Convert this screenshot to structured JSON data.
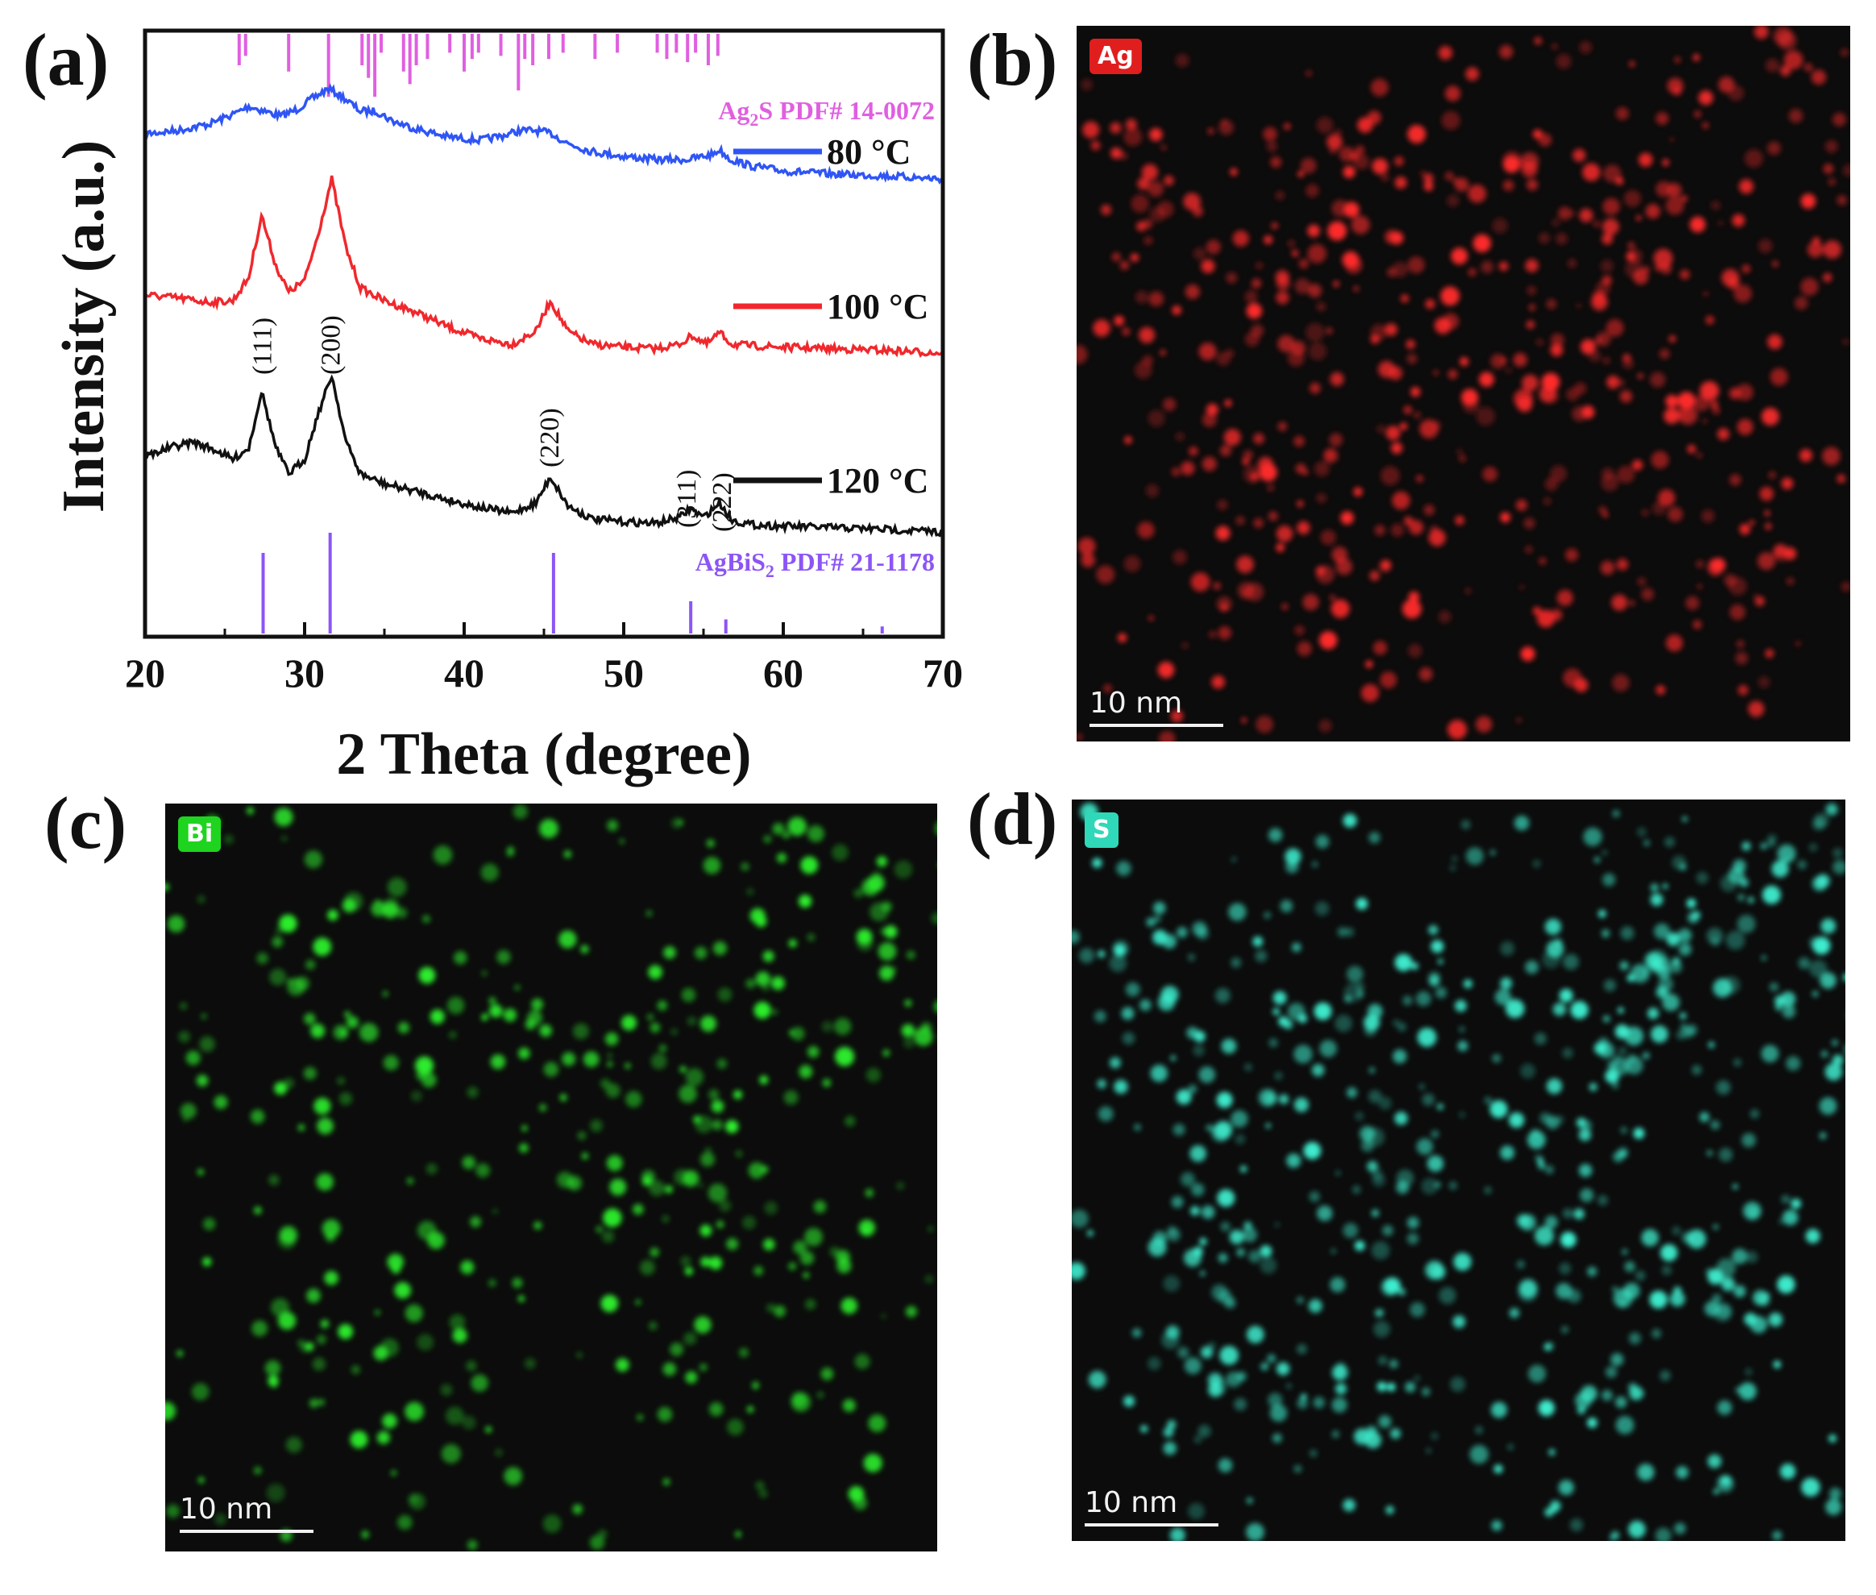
{
  "panels": {
    "a": "(a)",
    "b": "(b)",
    "c": "(c)",
    "d": "(d)"
  },
  "chart_data": {
    "type": "line",
    "xlabel": "2 Theta (degree)",
    "ylabel": "Intensity (a.u.)",
    "xlim": [
      20,
      70
    ],
    "xticks": [
      20,
      30,
      40,
      50,
      60,
      70
    ],
    "grid": false,
    "legend_placement": "right, beside each curve",
    "series": [
      {
        "name": "80 °C",
        "color": "#2f55f5",
        "x": [
          20,
          22,
          24,
          25.5,
          26.5,
          27.5,
          28.5,
          29.5,
          30.5,
          31.5,
          32.5,
          33.5,
          34.5,
          35.5,
          37,
          39,
          41,
          42.5,
          43.5,
          44.5,
          45.5,
          46.5,
          48,
          50,
          52,
          54,
          55.5,
          56,
          56.7,
          58,
          60,
          63,
          66,
          70
        ],
        "y": [
          0.28,
          0.3,
          0.34,
          0.4,
          0.45,
          0.42,
          0.39,
          0.43,
          0.5,
          0.56,
          0.5,
          0.42,
          0.42,
          0.36,
          0.31,
          0.26,
          0.24,
          0.27,
          0.3,
          0.3,
          0.28,
          0.22,
          0.17,
          0.14,
          0.12,
          0.12,
          0.15,
          0.18,
          0.12,
          0.08,
          0.05,
          0.03,
          0.02,
          0.0
        ]
      },
      {
        "name": "100 °C",
        "color": "#f0282d",
        "x": [
          20,
          22,
          24,
          25.5,
          26.5,
          27.3,
          28.2,
          29,
          30,
          30.8,
          31.7,
          32.6,
          33.5,
          35,
          37,
          39,
          41,
          43,
          44.5,
          45.4,
          46.5,
          48,
          50,
          52,
          53.5,
          54.3,
          55.2,
          56,
          56.8,
          58,
          60,
          63,
          66,
          70
        ],
        "y": [
          0.4,
          0.38,
          0.35,
          0.36,
          0.52,
          0.95,
          0.6,
          0.42,
          0.5,
          0.8,
          1.2,
          0.72,
          0.45,
          0.36,
          0.28,
          0.18,
          0.1,
          0.06,
          0.15,
          0.36,
          0.15,
          0.06,
          0.04,
          0.03,
          0.06,
          0.12,
          0.06,
          0.14,
          0.06,
          0.05,
          0.04,
          0.03,
          0.02,
          0.0
        ]
      },
      {
        "name": "120 °C",
        "color": "#111111",
        "x": [
          20,
          21.5,
          23,
          24.5,
          25.5,
          26.5,
          27.3,
          28.2,
          29,
          30,
          30.8,
          31.7,
          32.6,
          33.5,
          35,
          37,
          39,
          41,
          43,
          44.5,
          45.4,
          46.5,
          48,
          50,
          52,
          53.5,
          54.2,
          55,
          56,
          56.8,
          58,
          60,
          63,
          66,
          70
        ],
        "y": [
          0.52,
          0.58,
          0.62,
          0.56,
          0.5,
          0.58,
          0.97,
          0.58,
          0.4,
          0.5,
          0.8,
          1.08,
          0.62,
          0.4,
          0.33,
          0.28,
          0.22,
          0.17,
          0.13,
          0.2,
          0.38,
          0.18,
          0.09,
          0.07,
          0.06,
          0.1,
          0.16,
          0.1,
          0.2,
          0.08,
          0.05,
          0.04,
          0.03,
          0.02,
          0.0
        ]
      }
    ],
    "reference_patterns": [
      {
        "name": "Ag₂S PDF# 14-0072",
        "label_main": "Ag",
        "label_sub": "2",
        "label_rest": "S PDF# 14-0072",
        "color": "#e05fe0",
        "position": "top",
        "lines": [
          [
            25.9,
            0.5
          ],
          [
            26.3,
            0.35
          ],
          [
            29.0,
            0.6
          ],
          [
            31.5,
            1.0
          ],
          [
            33.6,
            0.5
          ],
          [
            34.0,
            0.7
          ],
          [
            34.4,
            1.0
          ],
          [
            34.8,
            0.3
          ],
          [
            36.2,
            0.6
          ],
          [
            36.6,
            0.8
          ],
          [
            37.0,
            0.5
          ],
          [
            37.7,
            0.4
          ],
          [
            39.1,
            0.3
          ],
          [
            40.0,
            0.6
          ],
          [
            40.5,
            0.4
          ],
          [
            40.9,
            0.3
          ],
          [
            42.3,
            0.35
          ],
          [
            43.4,
            0.9
          ],
          [
            43.8,
            0.4
          ],
          [
            44.3,
            0.5
          ],
          [
            45.3,
            0.4
          ],
          [
            46.2,
            0.3
          ],
          [
            48.2,
            0.4
          ],
          [
            49.6,
            0.3
          ],
          [
            52.1,
            0.3
          ],
          [
            52.7,
            0.4
          ],
          [
            53.3,
            0.3
          ],
          [
            54.0,
            0.45
          ],
          [
            54.5,
            0.3
          ],
          [
            55.3,
            0.5
          ],
          [
            55.9,
            0.35
          ]
        ]
      },
      {
        "name": "AgBiS₂ PDF# 21-1178",
        "label_main": "AgBiS",
        "label_sub": "2",
        "label_rest": " PDF# 21-1178",
        "color": "#8c55f5",
        "position": "bottom",
        "lines": [
          [
            27.4,
            0.8
          ],
          [
            31.6,
            1.0
          ],
          [
            45.6,
            0.8
          ],
          [
            54.2,
            0.32
          ],
          [
            56.4,
            0.14
          ],
          [
            66.2,
            0.07
          ]
        ]
      }
    ],
    "annotations": [
      {
        "text": "(111)",
        "x": 27.4
      },
      {
        "text": "(200)",
        "x": 31.7
      },
      {
        "text": "(220)",
        "x": 45.4
      },
      {
        "text": "(311)",
        "x": 54.0
      },
      {
        "text": "(222)",
        "x": 56.2
      }
    ]
  },
  "maps": [
    {
      "id": "b",
      "element": "Ag",
      "color": "#ff2b2b",
      "badge_color": "#e01e1e",
      "scale_label": "10 nm"
    },
    {
      "id": "c",
      "element": "Bi",
      "color": "#2df02d",
      "badge_color": "#1fd41f",
      "scale_label": "10 nm"
    },
    {
      "id": "d",
      "element": "S",
      "color": "#3ff0d0",
      "badge_color": "#2fd8b8",
      "scale_label": "10 nm"
    }
  ]
}
